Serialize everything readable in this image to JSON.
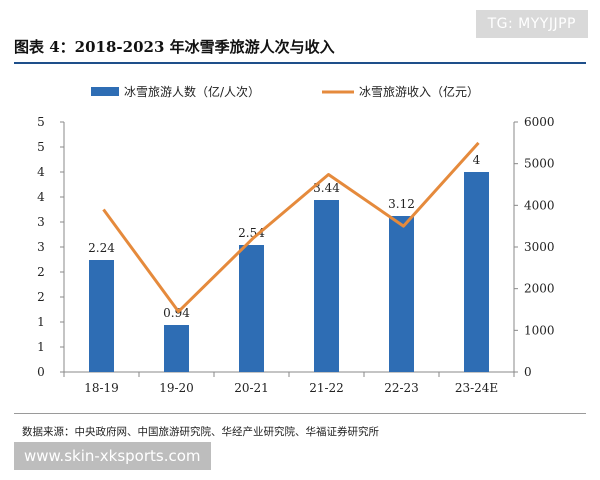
{
  "header": {
    "title": "图表 4：2018-2023 年冰雪季旅游人次与收入",
    "watermark": "TG: MYYJJPP"
  },
  "footer": {
    "source": "数据来源：中央政府网、中国旅游研究院、华经产业研究院、华福证券研究所",
    "site": "www.skin-xksports.com"
  },
  "colors": {
    "bar": "#2e6db4",
    "line": "#e58a3c"
  },
  "chart_data": {
    "type": "bar",
    "categories": [
      "18-19",
      "19-20",
      "20-21",
      "21-22",
      "22-23",
      "23-24E"
    ],
    "series": [
      {
        "name": "冰雪旅游人数（亿/人次）",
        "type": "bar",
        "axis": "left",
        "values": [
          2.24,
          0.94,
          2.54,
          3.44,
          3.12,
          4
        ],
        "labels": [
          "2.24",
          "0.94",
          "2.54",
          "3.44",
          "3.12",
          "4"
        ]
      },
      {
        "name": "冰雪旅游收入（亿元）",
        "type": "line",
        "axis": "right",
        "values": [
          3900,
          1450,
          3220,
          4740,
          3500,
          5500
        ]
      }
    ],
    "left_axis": {
      "ticks": [
        "0",
        "1",
        "1",
        "2",
        "2",
        "3",
        "3",
        "4",
        "4",
        "5",
        "5"
      ]
    },
    "right_axis": {
      "min": 0,
      "max": 6000,
      "ticks": [
        "0",
        "1000",
        "2000",
        "3000",
        "4000",
        "5000",
        "6000"
      ]
    },
    "legend_position": "top",
    "grid": false
  }
}
